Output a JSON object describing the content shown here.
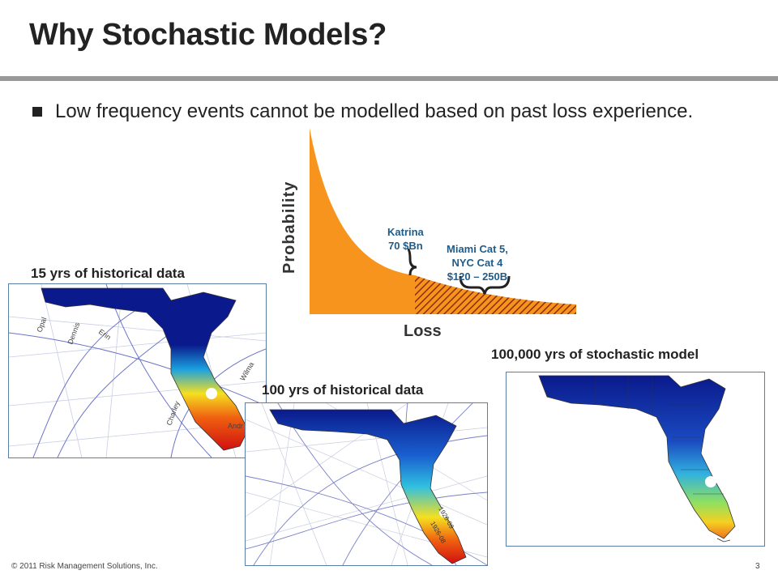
{
  "slide": {
    "title": "Why Stochastic Models?",
    "bullet": "Low frequency events cannot be modelled based on past loss experience.",
    "footer": "© 2011 Risk Management Solutions, Inc.",
    "page_number": "3"
  },
  "curve": {
    "ylabel": "Probability",
    "xlabel": "Loss",
    "katrina_line1": "Katrina",
    "katrina_line2": "70 $Bn",
    "miami_line1": "Miami Cat 5,",
    "miami_line2": "NYC Cat 4",
    "miami_line3": "$120 – 250B",
    "colors": {
      "fill": "#f7941d",
      "hatch": "#8b2e0b"
    }
  },
  "maps": [
    {
      "caption": "15 yrs of historical data",
      "storm_labels": [
        "Opal",
        "Dennis",
        "Erin",
        "Wilma",
        "Charley",
        "Andr"
      ]
    },
    {
      "caption": "100 yrs of historical data",
      "storm_labels": [
        "1926-09",
        "1926-08"
      ]
    },
    {
      "caption": "100,000 yrs of stochastic model",
      "storm_labels": []
    }
  ]
}
